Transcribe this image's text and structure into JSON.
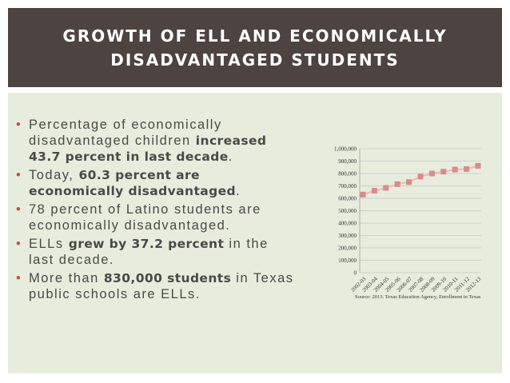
{
  "header": {
    "title_line1": "GROWTH OF ELL AND ECONOMICALLY",
    "title_line2": "DISADVANTAGED STUDENTS"
  },
  "bullets": [
    {
      "pre": "Percentage of economically disadvantaged children ",
      "bold": "increased 43.7 percent in last decade",
      "post": "."
    },
    {
      "pre": "Today, ",
      "bold": "60.3 percent are economically disadvantaged",
      "post": "."
    },
    {
      "pre": "78 percent of Latino students are economically disadvantaged.",
      "bold": "",
      "post": ""
    },
    {
      "pre": "ELLs ",
      "bold": "grew by 37.2 percent",
      "post": " in the last decade."
    },
    {
      "pre": "More than ",
      "bold": "830,000 students",
      "post": " in Texas public schools are ELLs."
    }
  ],
  "colors": {
    "header_bg": "#4d4341",
    "content_bg": "#e8ecdd",
    "bullet": "#c2523c",
    "series": "#f2b6b6",
    "marker": "#d88c8c"
  },
  "chart_data": {
    "type": "line",
    "categories": [
      "2002-03",
      "2003-04",
      "2004-05",
      "2005-06",
      "2006-07",
      "2007-08",
      "2008-09",
      "2009-10",
      "2010-11",
      "2011-12",
      "2012-13"
    ],
    "values": [
      630000,
      661000,
      684000,
      714000,
      731000,
      775000,
      800000,
      815000,
      832000,
      836000,
      862000
    ],
    "ylim": [
      0,
      1000000
    ],
    "yticks": [
      0,
      100000,
      200000,
      300000,
      400000,
      500000,
      600000,
      700000,
      800000,
      900000,
      1000000
    ],
    "ytick_labels": [
      "0",
      "100,000",
      "200,000",
      "300,000",
      "400,000",
      "500,000",
      "600,000",
      "700,000",
      "800,000",
      "900,000",
      "1,000,000"
    ],
    "source": "Source: 2013. Texas Education Agency, Enrollment in Texas",
    "grid": true
  }
}
